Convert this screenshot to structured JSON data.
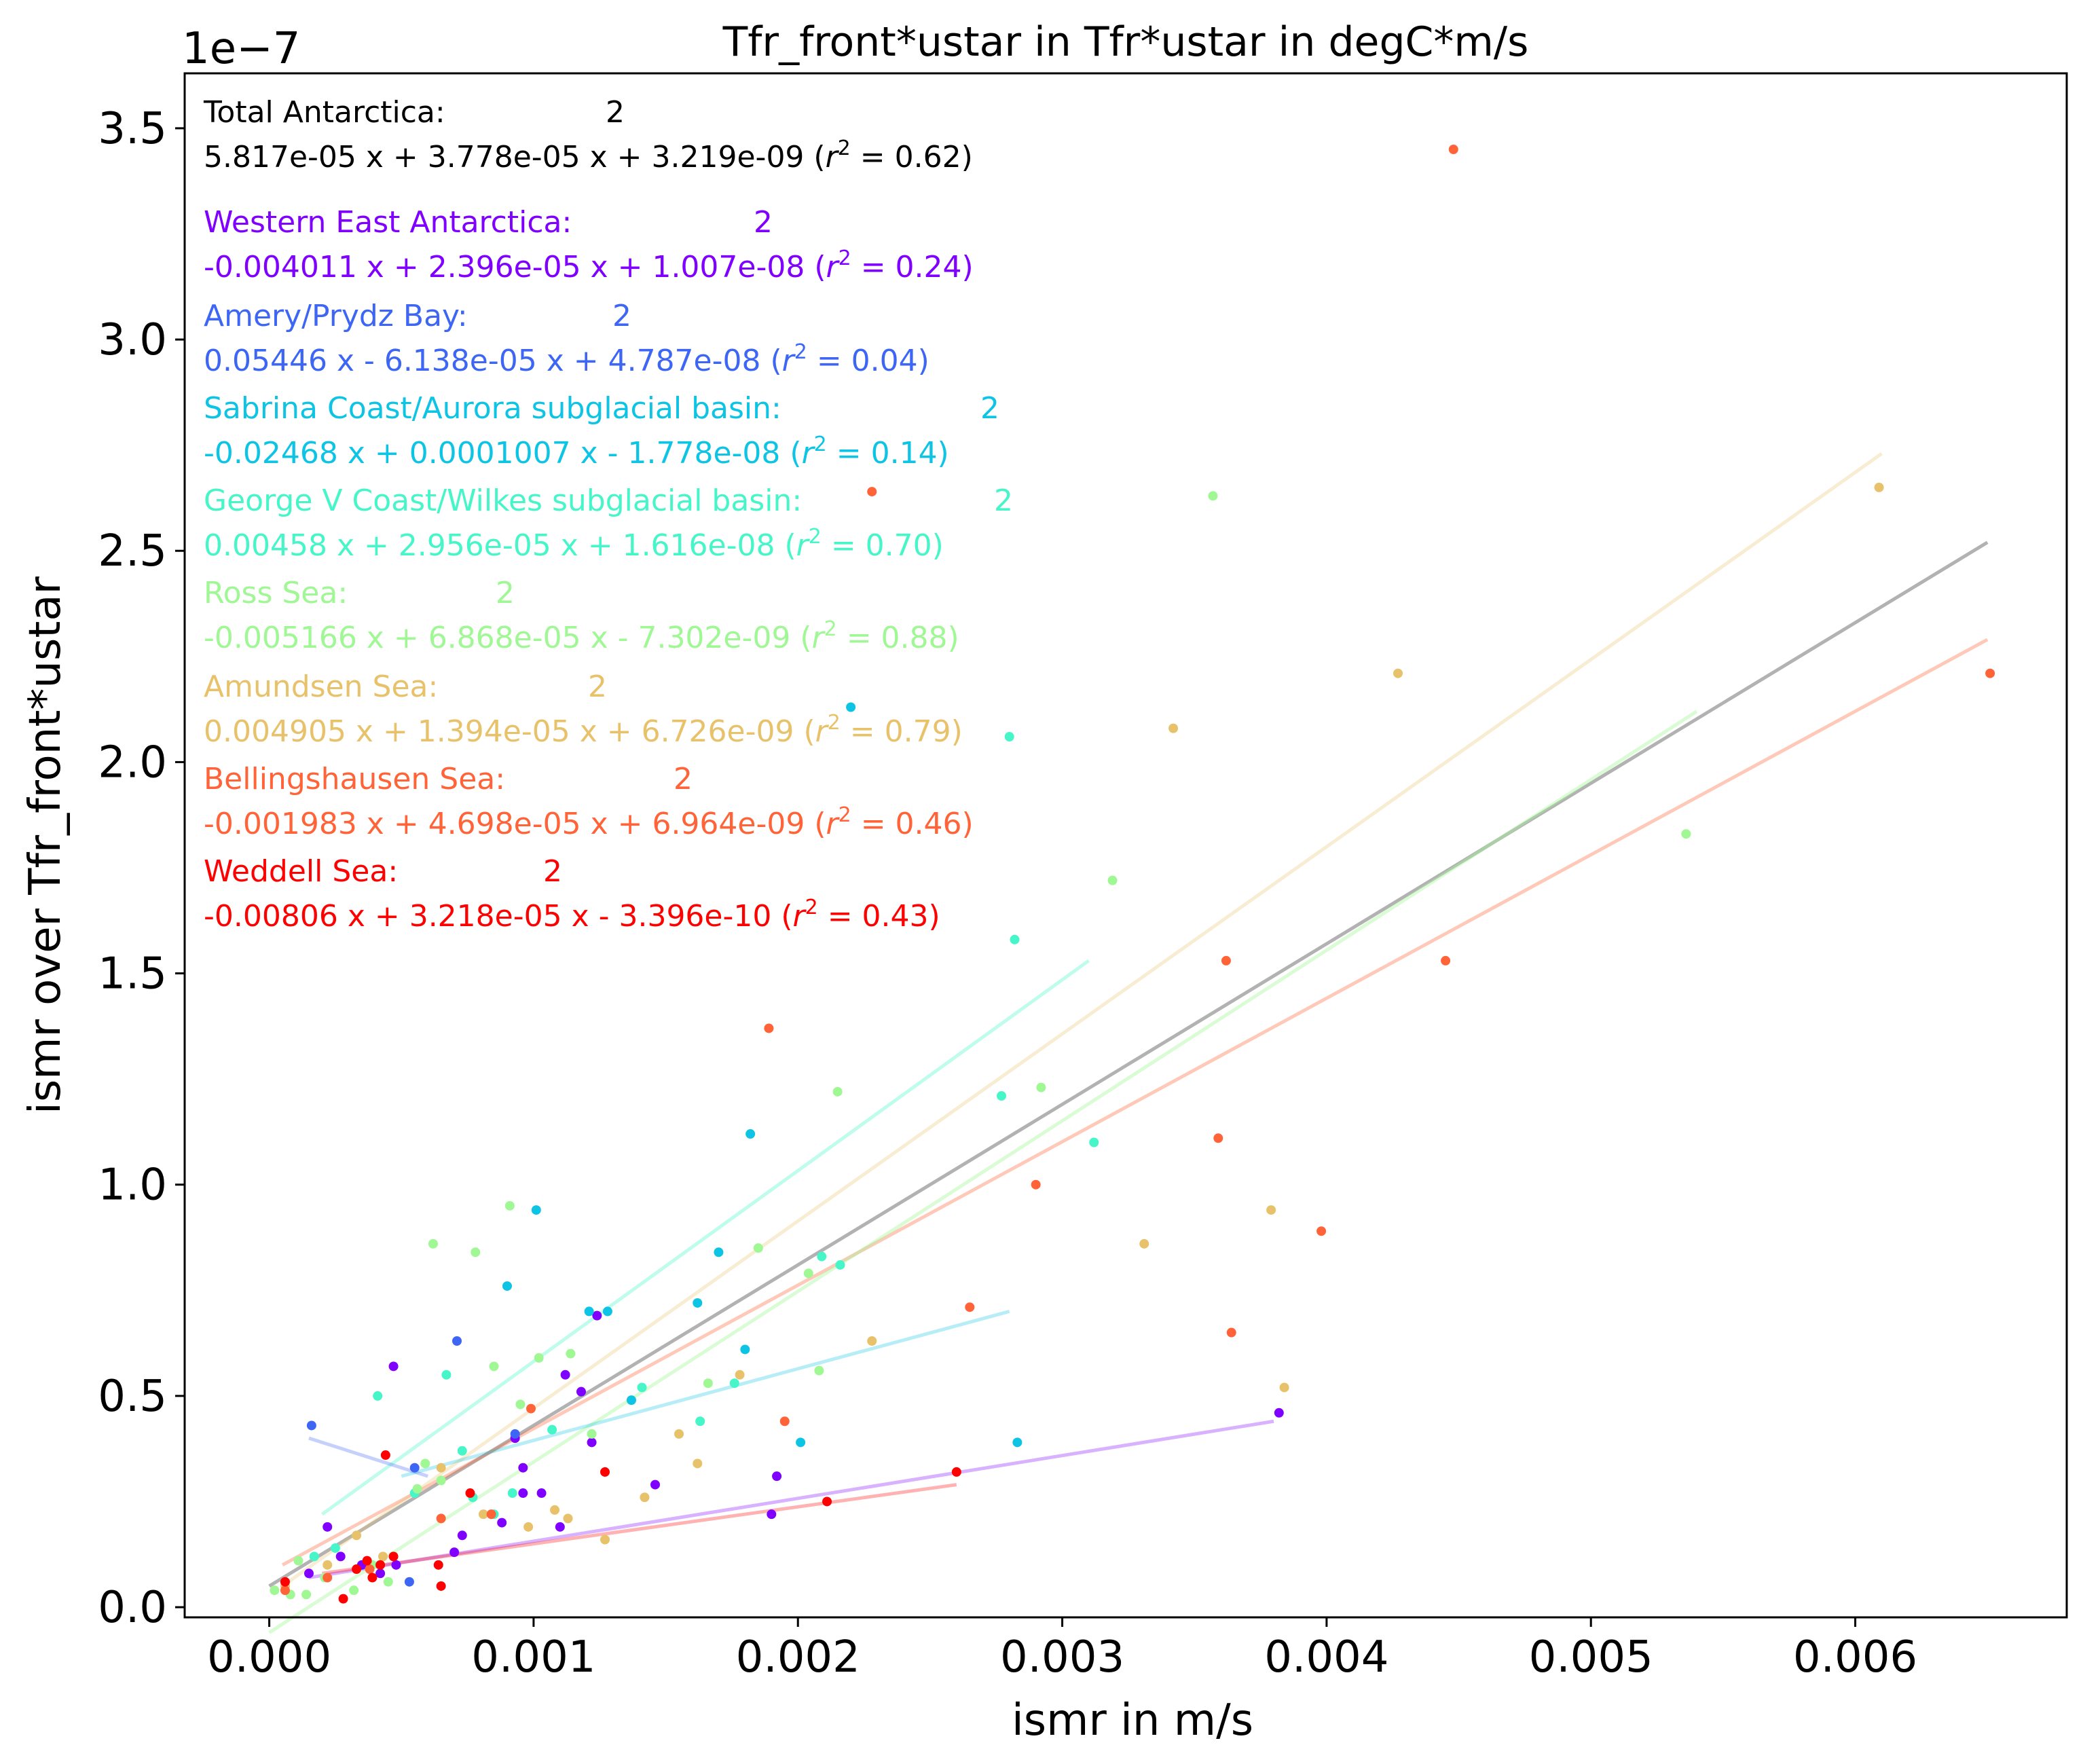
{
  "chart_data": {
    "type": "scatter",
    "title": "Tfr_front*ustar in Tfr*ustar in degC*m/s",
    "xlabel": "ismr in m/s",
    "ylabel": "ismr over Tfr_front*ustar",
    "y_offset_label": "1e−7",
    "xlim": [
      -0.00032,
      0.0068
    ],
    "ylim": [
      -2.4e-09,
      3.63e-07
    ],
    "x_ticks": [
      0.0,
      0.001,
      0.002,
      0.003,
      0.004,
      0.005,
      0.006
    ],
    "x_tick_labels": [
      "0.000",
      "0.001",
      "0.002",
      "0.003",
      "0.004",
      "0.005",
      "0.006"
    ],
    "y_ticks": [
      0.0,
      0.5,
      1.0,
      1.5,
      2.0,
      2.5,
      3.0,
      3.5
    ],
    "y_tick_labels": [
      "0.0",
      "0.5",
      "1.0",
      "1.5",
      "2.0",
      "2.5",
      "3.0",
      "3.5"
    ],
    "grid": false,
    "annotations": [
      {
        "name": "Total Antarctica:",
        "deg": "2",
        "eq_pre": "5.817e-05 x + 3.778e-05 x + 3.219e-09 (",
        "eq_r2": "r",
        "eq_sup": "2",
        "eq_post": " = 0.62)",
        "color": "#000000"
      },
      {
        "name": "Western East Antarctica:",
        "deg": "2",
        "eq_pre": "-0.004011 x + 2.396e-05 x + 1.007e-08 (",
        "eq_r2": "r",
        "eq_sup": "2",
        "eq_post": " = 0.24)",
        "color": "#7f00ff"
      },
      {
        "name": "Amery/Prydz Bay:",
        "deg": "2",
        "eq_pre": "0.05446 x - 6.138e-05 x + 4.787e-08 (",
        "eq_r2": "r",
        "eq_sup": "2",
        "eq_post": " = 0.04)",
        "color": "#3e66f5"
      },
      {
        "name": "Sabrina Coast/Aurora subglacial basin:",
        "deg": "2",
        "eq_pre": "-0.02468 x + 0.0001007 x - 1.778e-08 (",
        "eq_r2": "r",
        "eq_sup": "2",
        "eq_post": " = 0.14)",
        "color": "#0ec4e4"
      },
      {
        "name": "George V Coast/Wilkes subglacial basin:",
        "deg": "2",
        "eq_pre": "0.00458 x + 2.956e-05 x + 1.616e-08 (",
        "eq_r2": "r",
        "eq_sup": "2",
        "eq_post": " = 0.70)",
        "color": "#46f6c8"
      },
      {
        "name": "Ross Sea:",
        "deg": "2",
        "eq_pre": "-0.005166 x + 6.868e-05 x - 7.302e-09 (",
        "eq_r2": "r",
        "eq_sup": "2",
        "eq_post": " = 0.88)",
        "color": "#9ff894"
      },
      {
        "name": "Amundsen Sea:",
        "deg": "2",
        "eq_pre": "0.004905 x + 1.394e-05 x + 6.726e-09 (",
        "eq_r2": "r",
        "eq_sup": "2",
        "eq_post": " = 0.79)",
        "color": "#e8c26a"
      },
      {
        "name": "Bellingshausen Sea:",
        "deg": "2",
        "eq_pre": "-0.001983 x + 4.698e-05 x + 6.964e-09 (",
        "eq_r2": "r",
        "eq_sup": "2",
        "eq_post": " = 0.46)",
        "color": "#ff6337"
      },
      {
        "name": "Weddell Sea:",
        "deg": "2",
        "eq_pre": "-0.00806 x + 3.218e-05 x - 3.396e-10 (",
        "eq_r2": "r",
        "eq_sup": "2",
        "eq_post": " = 0.43)",
        "color": "#ff0000"
      }
    ],
    "fit_lines": [
      {
        "color": "#7f7f7f",
        "opacity": 0.6,
        "x": [
          0.0,
          0.0065
        ],
        "y": [
          5e-09,
          2.52e-07
        ]
      },
      {
        "color": "#ff6337",
        "opacity": 0.35,
        "x": [
          5e-05,
          0.0065
        ],
        "y": [
          1e-08,
          2.29e-07
        ]
      },
      {
        "color": "#e8c26a",
        "opacity": 0.3,
        "x": [
          5e-05,
          0.0061
        ],
        "y": [
          5e-09,
          2.73e-07
        ]
      },
      {
        "color": "#9ff894",
        "opacity": 0.4,
        "x": [
          0.0,
          0.0054
        ],
        "y": [
          -6e-09,
          2.12e-07
        ]
      },
      {
        "color": "#46f6c8",
        "opacity": 0.35,
        "x": [
          0.0002,
          0.0031
        ],
        "y": [
          2.2e-08,
          1.53e-07
        ]
      },
      {
        "color": "#0ec4e4",
        "opacity": 0.3,
        "x": [
          0.0005,
          0.0028
        ],
        "y": [
          3.1e-08,
          7e-08
        ]
      },
      {
        "color": "#3e66f5",
        "opacity": 0.3,
        "x": [
          0.00015,
          0.0006
        ],
        "y": [
          4e-08,
          3.1e-08
        ]
      },
      {
        "color": "#7f00ff",
        "opacity": 0.3,
        "x": [
          0.00015,
          0.0038
        ],
        "y": [
          7e-09,
          4.4e-08
        ]
      },
      {
        "color": "#ff0000",
        "opacity": 0.3,
        "x": [
          0.0002,
          0.0026
        ],
        "y": [
          8e-09,
          2.9e-08
        ]
      }
    ],
    "series": [
      {
        "color": "#7f00ff",
        "points": [
          [
            0.00015,
            8e-09
          ],
          [
            0.00022,
            1.9e-08
          ],
          [
            0.00027,
            1.2e-08
          ],
          [
            0.00035,
            1e-08
          ],
          [
            0.00042,
            8e-09
          ],
          [
            0.00047,
            5.7e-08
          ],
          [
            0.00048,
            1e-08
          ],
          [
            0.0007,
            1.3e-08
          ],
          [
            0.00073,
            1.7e-08
          ],
          [
            0.00088,
            2e-08
          ],
          [
            0.00093,
            4e-08
          ],
          [
            0.00096,
            3.3e-08
          ],
          [
            0.00096,
            2.7e-08
          ],
          [
            0.00103,
            2.7e-08
          ],
          [
            0.0011,
            1.9e-08
          ],
          [
            0.00112,
            5.5e-08
          ],
          [
            0.00118,
            5.1e-08
          ],
          [
            0.00122,
            3.9e-08
          ],
          [
            0.00124,
            6.9e-08
          ],
          [
            0.00146,
            2.9e-08
          ],
          [
            0.0019,
            2.2e-08
          ],
          [
            0.00192,
            3.1e-08
          ],
          [
            0.00382,
            4.6e-08
          ]
        ]
      },
      {
        "color": "#3e66f5",
        "points": [
          [
            0.00016,
            4.3e-08
          ],
          [
            0.00053,
            6e-09
          ],
          [
            0.00055,
            3.3e-08
          ],
          [
            0.00071,
            6.3e-08
          ],
          [
            0.00093,
            4.1e-08
          ]
        ]
      },
      {
        "color": "#0ec4e4",
        "points": [
          [
            0.0009,
            7.6e-08
          ],
          [
            0.00101,
            9.4e-08
          ],
          [
            0.00121,
            7e-08
          ],
          [
            0.00128,
            7e-08
          ],
          [
            0.00137,
            4.9e-08
          ],
          [
            0.00162,
            7.2e-08
          ],
          [
            0.0017,
            8.4e-08
          ],
          [
            0.0018,
            6.1e-08
          ],
          [
            0.00182,
            1.12e-07
          ],
          [
            0.00201,
            3.9e-08
          ],
          [
            0.0022,
            2.13e-07
          ],
          [
            0.00283,
            3.9e-08
          ]
        ]
      },
      {
        "color": "#46f6c8",
        "points": [
          [
            0.00017,
            1.2e-08
          ],
          [
            0.00025,
            1.4e-08
          ],
          [
            0.00041,
            5e-08
          ],
          [
            0.00055,
            2.7e-08
          ],
          [
            0.00067,
            5.5e-08
          ],
          [
            0.00073,
            3.7e-08
          ],
          [
            0.00077,
            2.6e-08
          ],
          [
            0.00085,
            2.2e-08
          ],
          [
            0.00092,
            2.7e-08
          ],
          [
            0.00107,
            4.2e-08
          ],
          [
            0.00141,
            5.2e-08
          ],
          [
            0.00163,
            4.4e-08
          ],
          [
            0.00176,
            5.3e-08
          ],
          [
            0.00209,
            8.3e-08
          ],
          [
            0.00216,
            8.1e-08
          ],
          [
            0.00277,
            1.21e-07
          ],
          [
            0.0028,
            2.06e-07
          ],
          [
            0.00282,
            1.58e-07
          ],
          [
            0.00312,
            1.1e-07
          ]
        ]
      },
      {
        "color": "#9ff894",
        "points": [
          [
            2e-05,
            4e-09
          ],
          [
            8e-05,
            3e-09
          ],
          [
            0.00011,
            1.1e-08
          ],
          [
            0.00014,
            3e-09
          ],
          [
            0.00021,
            7e-09
          ],
          [
            0.00032,
            4e-09
          ],
          [
            0.00039,
            1e-08
          ],
          [
            0.00045,
            6e-09
          ],
          [
            0.00056,
            2.8e-08
          ],
          [
            0.00059,
            3.4e-08
          ],
          [
            0.00062,
            8.6e-08
          ],
          [
            0.00065,
            3e-08
          ],
          [
            0.00078,
            8.4e-08
          ],
          [
            0.00085,
            5.7e-08
          ],
          [
            0.00091,
            9.5e-08
          ],
          [
            0.00095,
            4.8e-08
          ],
          [
            0.00102,
            5.9e-08
          ],
          [
            0.00114,
            6e-08
          ],
          [
            0.00122,
            4.1e-08
          ],
          [
            0.00166,
            5.3e-08
          ],
          [
            0.00185,
            8.5e-08
          ],
          [
            0.00204,
            7.9e-08
          ],
          [
            0.00208,
            5.6e-08
          ],
          [
            0.00215,
            1.22e-07
          ],
          [
            0.00292,
            1.23e-07
          ],
          [
            0.00319,
            1.72e-07
          ],
          [
            0.00357,
            2.63e-07
          ],
          [
            0.00536,
            1.83e-07
          ]
        ]
      },
      {
        "color": "#e8c26a",
        "points": [
          [
            6e-05,
            5e-09
          ],
          [
            0.00022,
            1e-08
          ],
          [
            0.00033,
            1.7e-08
          ],
          [
            0.00043,
            1.2e-08
          ],
          [
            0.00065,
            3.3e-08
          ],
          [
            0.00081,
            2.2e-08
          ],
          [
            0.00098,
            1.9e-08
          ],
          [
            0.00108,
            2.3e-08
          ],
          [
            0.00113,
            2.1e-08
          ],
          [
            0.00127,
            1.6e-08
          ],
          [
            0.00142,
            2.6e-08
          ],
          [
            0.00155,
            4.1e-08
          ],
          [
            0.00162,
            3.4e-08
          ],
          [
            0.00178,
            5.5e-08
          ],
          [
            0.00228,
            6.3e-08
          ],
          [
            0.00331,
            8.6e-08
          ],
          [
            0.00342,
            2.08e-07
          ],
          [
            0.00379,
            9.4e-08
          ],
          [
            0.00384,
            5.2e-08
          ],
          [
            0.00427,
            2.21e-07
          ],
          [
            0.00609,
            2.65e-07
          ]
        ]
      },
      {
        "color": "#ff6337",
        "points": [
          [
            6e-05,
            4e-09
          ],
          [
            0.00022,
            7e-09
          ],
          [
            0.00038,
            9e-09
          ],
          [
            0.00065,
            2.1e-08
          ],
          [
            0.00084,
            2.2e-08
          ],
          [
            0.00099,
            4.7e-08
          ],
          [
            0.00195,
            4.4e-08
          ],
          [
            0.00228,
            2.64e-07
          ],
          [
            0.00189,
            1.37e-07
          ],
          [
            0.00265,
            7.1e-08
          ],
          [
            0.0029,
            1e-07
          ],
          [
            0.00359,
            1.11e-07
          ],
          [
            0.00362,
            1.53e-07
          ],
          [
            0.00364,
            6.5e-08
          ],
          [
            0.00398,
            8.9e-08
          ],
          [
            0.00445,
            1.53e-07
          ],
          [
            0.00448,
            3.45e-07
          ],
          [
            0.00651,
            2.21e-07
          ]
        ]
      },
      {
        "color": "#ff0000",
        "points": [
          [
            6e-05,
            6e-09
          ],
          [
            0.00028,
            2e-09
          ],
          [
            0.00033,
            9e-09
          ],
          [
            0.00037,
            1.1e-08
          ],
          [
            0.00039,
            7e-09
          ],
          [
            0.00042,
            1e-08
          ],
          [
            0.00044,
            3.6e-08
          ],
          [
            0.00047,
            1.2e-08
          ],
          [
            0.00064,
            1e-08
          ],
          [
            0.00065,
            5e-09
          ],
          [
            0.00076,
            2.7e-08
          ],
          [
            0.00127,
            3.2e-08
          ],
          [
            0.00211,
            2.5e-08
          ],
          [
            0.0026,
            3.2e-08
          ]
        ]
      }
    ]
  }
}
